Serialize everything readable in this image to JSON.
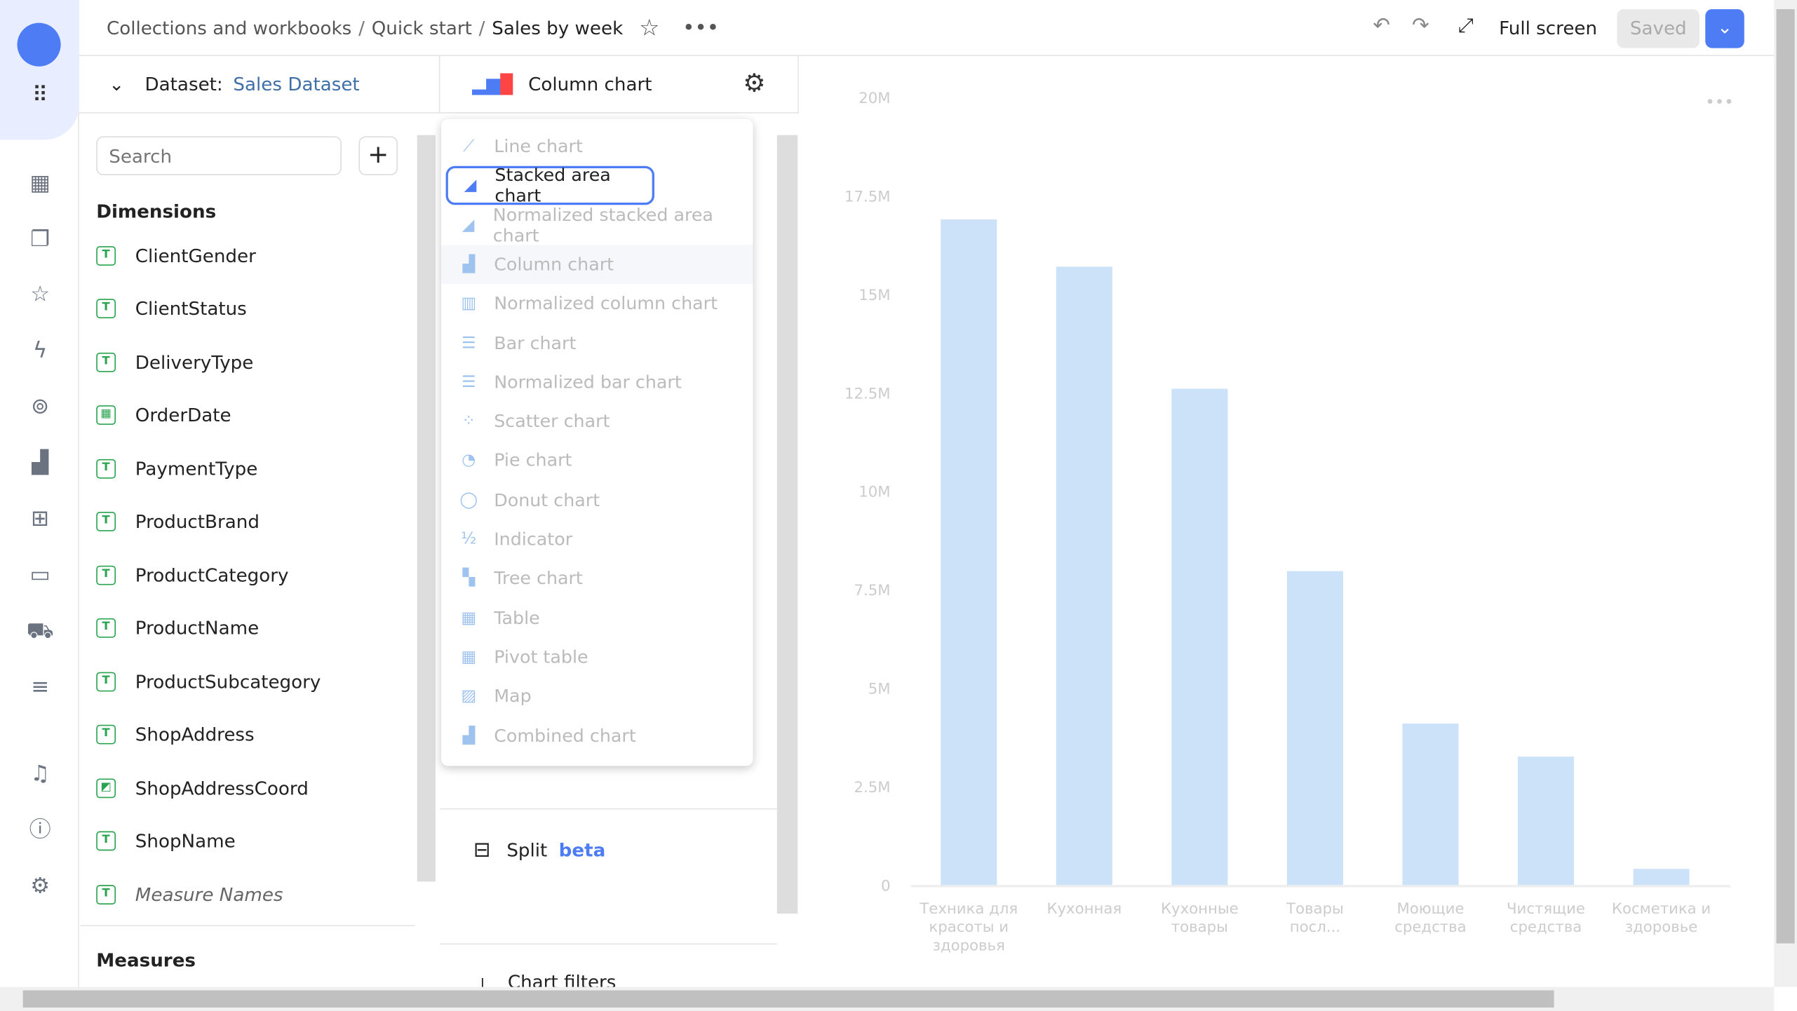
{
  "breadcrumb": {
    "items": [
      "Collections and workbooks",
      "Quick start"
    ],
    "current": "Sales by week"
  },
  "toolbar": {
    "fullscreen": "Full screen",
    "saved": "Saved"
  },
  "dataset": {
    "label": "Dataset:",
    "name": "Sales Dataset"
  },
  "search": {
    "placeholder": "Search"
  },
  "dimensions": {
    "title": "Dimensions",
    "items": [
      "ClientGender",
      "ClientStatus",
      "DeliveryType",
      "OrderDate",
      "PaymentType",
      "ProductBrand",
      "ProductCategory",
      "ProductName",
      "ProductSubcategory",
      "ShopAddress",
      "ShopAddressCoord",
      "ShopName",
      "Measure Names"
    ]
  },
  "measures": {
    "title": "Measures"
  },
  "chart_type": {
    "current": "Column chart",
    "menu": [
      "Line chart",
      "Stacked area chart",
      "Normalized stacked area chart",
      "Column chart",
      "Normalized column chart",
      "Bar chart",
      "Normalized bar chart",
      "Scatter chart",
      "Pie chart",
      "Donut chart",
      "Indicator",
      "Tree chart",
      "Table",
      "Pivot table",
      "Map",
      "Combined chart"
    ],
    "highlighted": "Stacked area chart"
  },
  "sections": {
    "split": "Split",
    "beta": "beta",
    "chart_filters": "Chart filters"
  },
  "colors": {
    "accent": "#4d7cf5",
    "bar": "#cce2f8",
    "field_icon": "#2aa44f"
  },
  "chart_data": {
    "type": "bar",
    "categories": [
      "Техника для красоты и здоровья",
      "Кухонная",
      "Кухонные товары",
      "Товары посл...",
      "Моющие средства",
      "Чистящие средства",
      "Косметика и здоровье"
    ],
    "values": [
      16900000,
      15700000,
      12600000,
      7970000,
      4100000,
      3260000,
      410000
    ],
    "yticks": [
      "0",
      "2.5M",
      "5M",
      "7.5M",
      "10M",
      "12.5M",
      "15M",
      "17.5M",
      "20M"
    ],
    "ylim": [
      0,
      20000000
    ],
    "grid": false
  }
}
